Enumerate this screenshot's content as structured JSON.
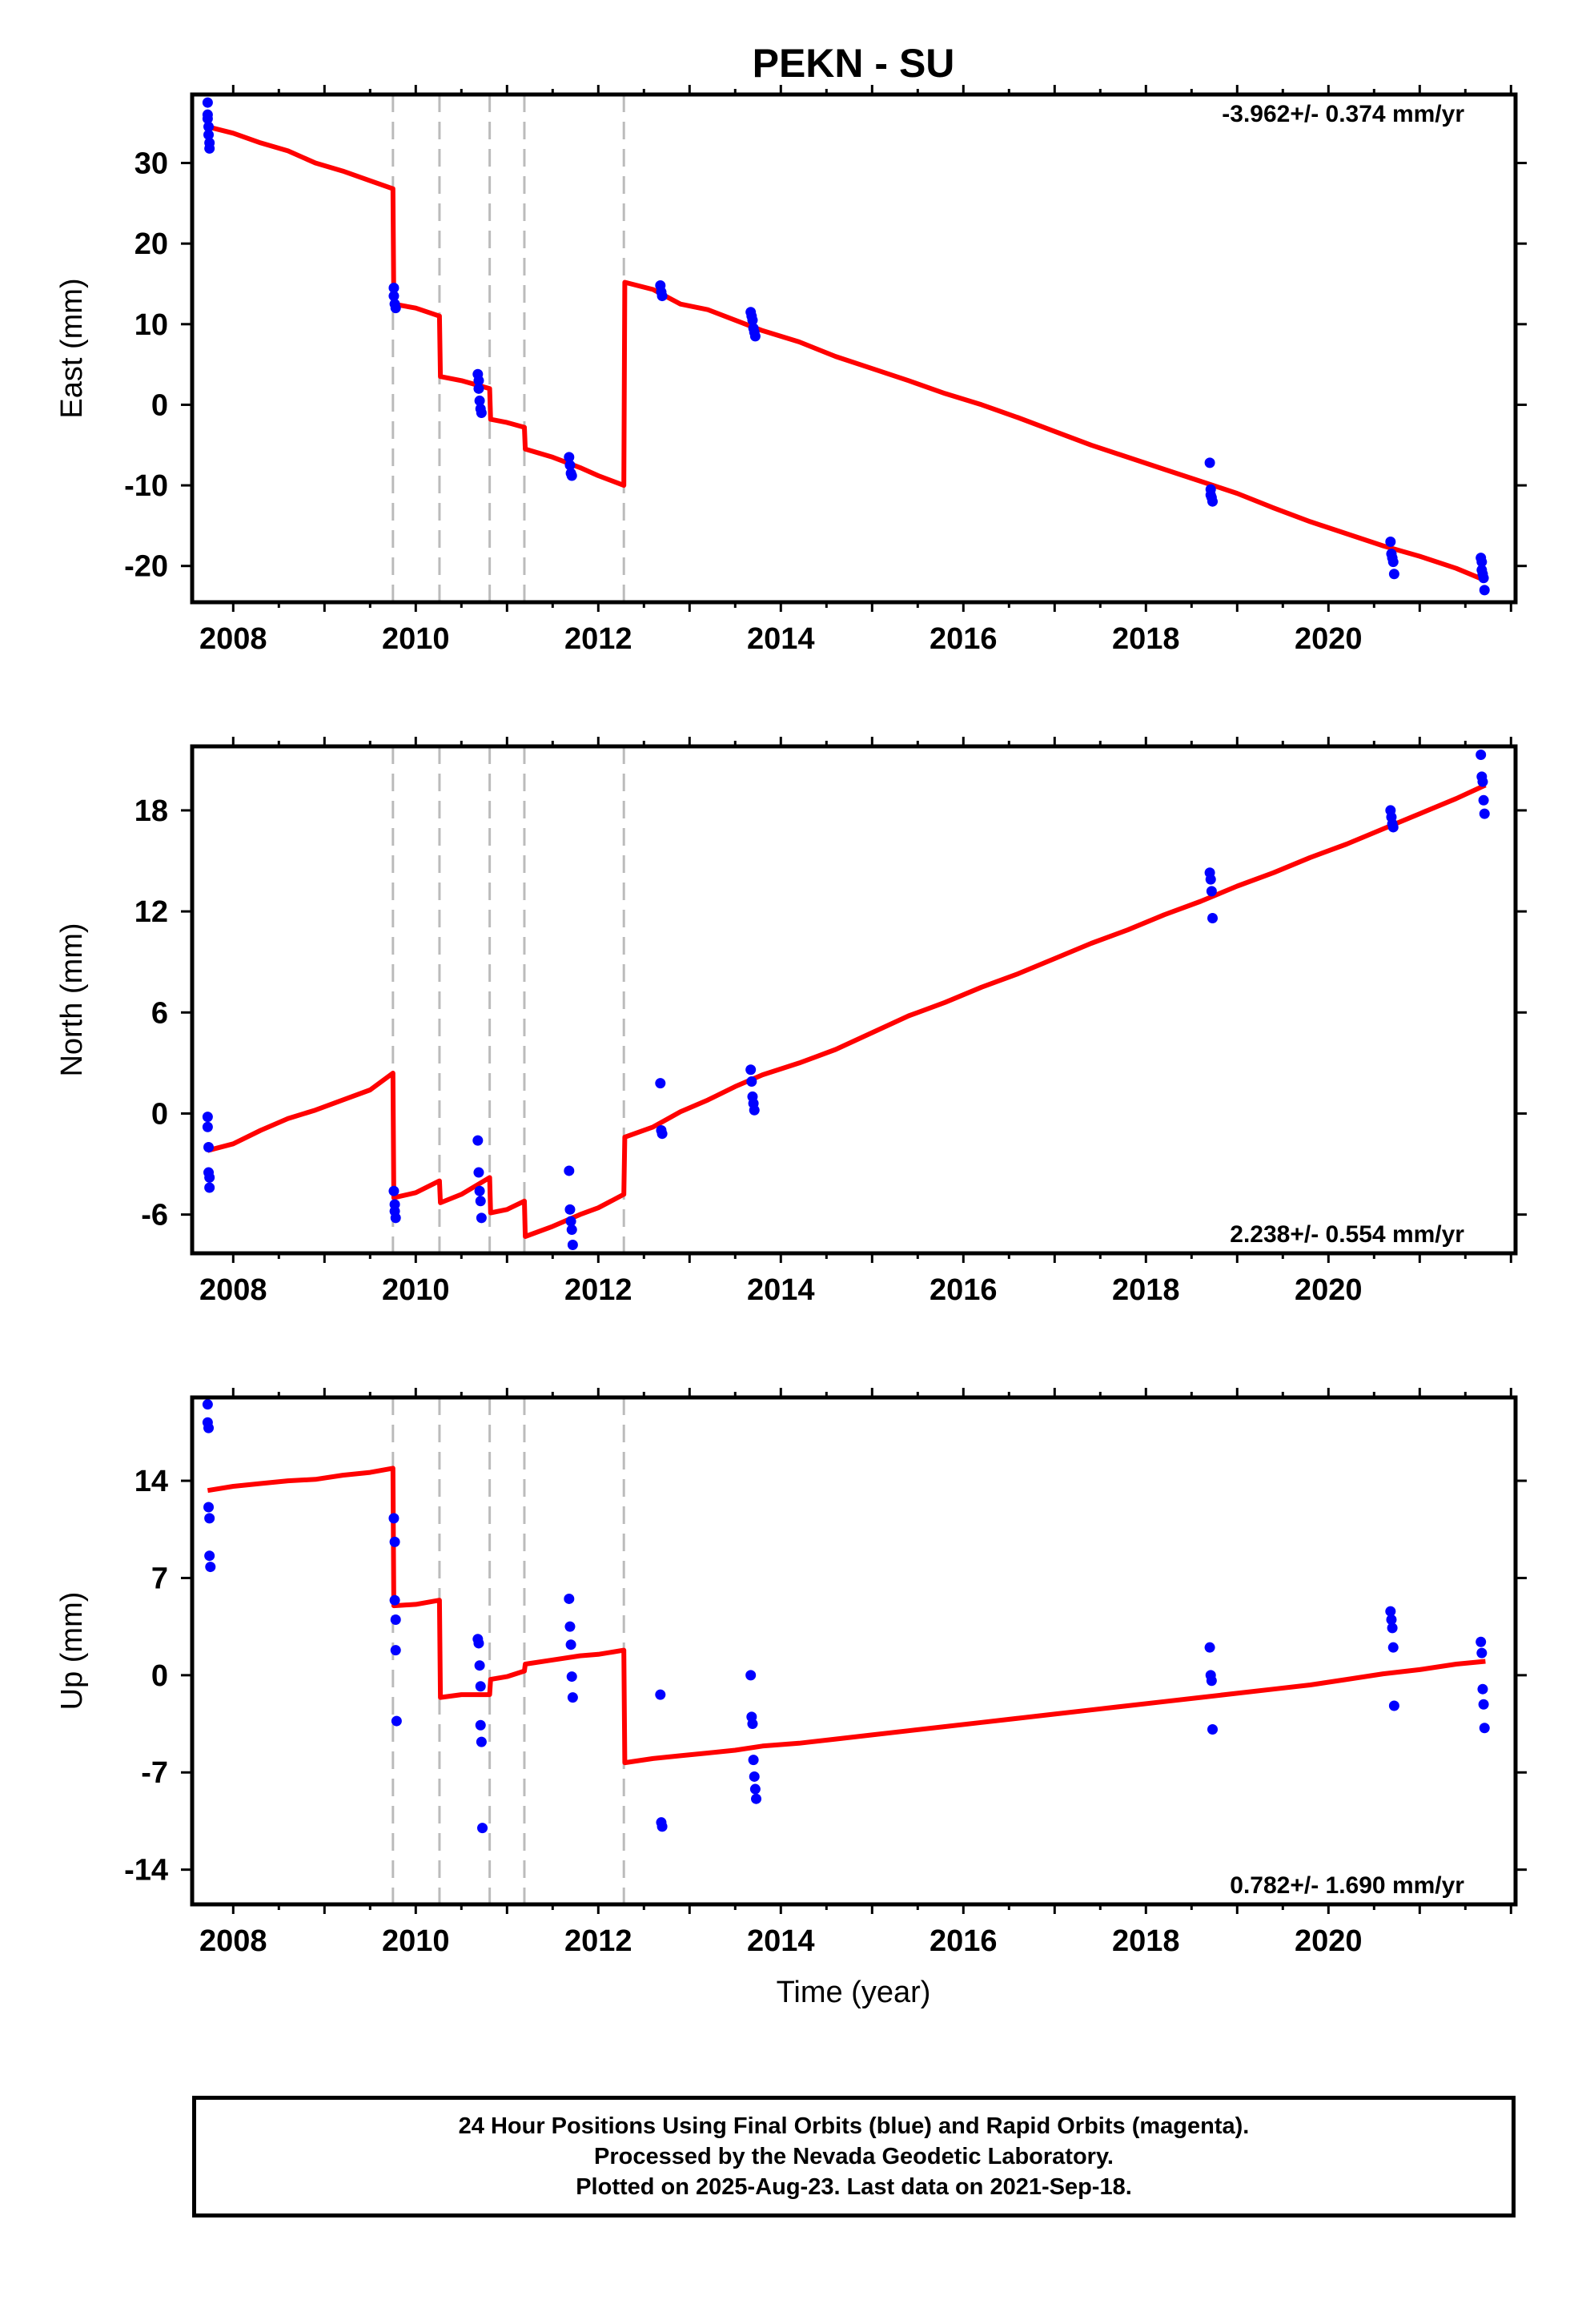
{
  "title": "PEKN - SU",
  "xlabel": "Time (year)",
  "colors": {
    "final_orbits": "#0000ff",
    "model": "#ff0000",
    "event_lines": "#bbbbbb",
    "frame": "#000000"
  },
  "footer": {
    "line1": "24 Hour Positions Using Final Orbits (blue) and Rapid Orbits (magenta).",
    "line2": "Processed by the Nevada Geodetic Laboratory.",
    "line3": "Plotted on 2025-Aug-23. Last data on 2021-Sep-18."
  },
  "chart_data": [
    {
      "type": "scatter",
      "ylabel": "East (mm)",
      "rate_text": "-3.962+/- 0.374 mm/yr",
      "rate_position": "top-right",
      "xlim": [
        2007.55,
        2022.05
      ],
      "ylim": [
        -24.5,
        38.5
      ],
      "xticks": [
        2008,
        2010,
        2012,
        2014,
        2016,
        2018,
        2020
      ],
      "yticks": [
        -20,
        -10,
        0,
        10,
        20,
        30
      ],
      "event_lines": [
        2009.75,
        2010.26,
        2010.81,
        2011.19,
        2012.28
      ],
      "series": [
        {
          "style": "points",
          "x": [
            2007.72,
            2007.72,
            2007.72,
            2007.73,
            2007.73,
            2007.74,
            2007.74,
            2009.76,
            2009.76,
            2009.77,
            2009.78,
            2010.68,
            2010.69,
            2010.69,
            2010.7,
            2010.71,
            2010.72,
            2011.68,
            2011.69,
            2011.7,
            2011.71,
            2012.68,
            2012.69,
            2012.7,
            2013.67,
            2013.68,
            2013.69,
            2013.7,
            2013.71,
            2013.72,
            2018.7,
            2018.71,
            2018.71,
            2018.72,
            2018.73,
            2020.68,
            2020.69,
            2020.7,
            2020.71,
            2020.72,
            2021.67,
            2021.68,
            2021.68,
            2021.69,
            2021.7,
            2021.71
          ],
          "y": [
            37.5,
            36,
            35.5,
            34.5,
            33.5,
            32.5,
            31.8,
            14.5,
            13.5,
            12.5,
            12,
            3.8,
            3,
            2,
            0.5,
            -0.5,
            -1,
            -6.5,
            -7.5,
            -8.5,
            -8.8,
            14.8,
            14,
            13.5,
            11.5,
            11,
            10.5,
            9.5,
            9,
            8.5,
            -7.2,
            -10.5,
            -11.2,
            -11.5,
            -12,
            -17,
            -18.5,
            -19,
            -19.5,
            -21,
            -19,
            -19.5,
            -20.5,
            -21,
            -21.5,
            -23
          ]
        },
        {
          "style": "line",
          "x": [
            2007.72,
            2008.0,
            2008.3,
            2008.6,
            2008.9,
            2009.2,
            2009.5,
            2009.75,
            2009.76,
            2010.0,
            2010.26,
            2010.27,
            2010.5,
            2010.81,
            2010.82,
            2011.0,
            2011.19,
            2011.2,
            2011.5,
            2011.8,
            2012.0,
            2012.28,
            2012.29,
            2012.6,
            2012.9,
            2013.2,
            2013.5,
            2013.8,
            2014.2,
            2014.6,
            2015.0,
            2015.4,
            2015.8,
            2016.2,
            2016.6,
            2017.0,
            2017.4,
            2017.8,
            2018.2,
            2018.6,
            2019.0,
            2019.4,
            2019.8,
            2020.2,
            2020.6,
            2021.0,
            2021.4,
            2021.72
          ],
          "y": [
            34.5,
            33.7,
            32.5,
            31.5,
            30.0,
            29.0,
            27.8,
            26.8,
            12.5,
            12.0,
            11.0,
            3.5,
            3.0,
            2.0,
            -1.8,
            -2.2,
            -2.8,
            -5.5,
            -6.5,
            -7.8,
            -8.8,
            -10.0,
            15.2,
            14.3,
            12.5,
            11.8,
            10.5,
            9.2,
            7.8,
            6.0,
            4.5,
            3.0,
            1.4,
            0.0,
            -1.6,
            -3.3,
            -5.0,
            -6.5,
            -8.0,
            -9.5,
            -11.0,
            -12.8,
            -14.5,
            -16.0,
            -17.5,
            -18.8,
            -20.3,
            -21.8
          ]
        }
      ]
    },
    {
      "type": "scatter",
      "ylabel": "North (mm)",
      "rate_text": "2.238+/- 0.554 mm/yr",
      "rate_position": "bottom-right",
      "xlim": [
        2007.55,
        2022.05
      ],
      "ylim": [
        -8.3,
        21.8
      ],
      "xticks": [
        2008,
        2010,
        2012,
        2014,
        2016,
        2018,
        2020
      ],
      "yticks": [
        -6,
        0,
        6,
        12,
        18
      ],
      "event_lines": [
        2009.75,
        2010.26,
        2010.81,
        2011.19,
        2012.28
      ],
      "series": [
        {
          "style": "points",
          "x": [
            2007.72,
            2007.72,
            2007.73,
            2007.73,
            2007.74,
            2007.74,
            2009.76,
            2009.77,
            2009.77,
            2009.78,
            2010.68,
            2010.69,
            2010.7,
            2010.71,
            2010.72,
            2011.68,
            2011.69,
            2011.7,
            2011.71,
            2011.72,
            2012.68,
            2012.69,
            2012.7,
            2013.67,
            2013.68,
            2013.69,
            2013.7,
            2013.71,
            2018.7,
            2018.71,
            2018.72,
            2018.73,
            2020.68,
            2020.69,
            2020.7,
            2020.71,
            2021.67,
            2021.68,
            2021.69,
            2021.7,
            2021.71
          ],
          "y": [
            -0.2,
            -0.8,
            -2.0,
            -3.5,
            -3.8,
            -4.4,
            -4.6,
            -5.4,
            -5.8,
            -6.2,
            -1.6,
            -3.5,
            -4.6,
            -5.2,
            -6.2,
            -3.4,
            -5.7,
            -6.4,
            -6.9,
            -7.8,
            1.8,
            -1.0,
            -1.2,
            2.6,
            1.9,
            1.0,
            0.6,
            0.2,
            14.3,
            13.9,
            13.2,
            11.6,
            18.0,
            17.6,
            17.2,
            17.0,
            21.3,
            20.0,
            19.7,
            18.6,
            17.8
          ]
        },
        {
          "style": "line",
          "x": [
            2007.72,
            2008.0,
            2008.3,
            2008.6,
            2008.9,
            2009.2,
            2009.5,
            2009.75,
            2009.76,
            2010.0,
            2010.26,
            2010.27,
            2010.5,
            2010.81,
            2010.82,
            2011.0,
            2011.19,
            2011.2,
            2011.5,
            2011.8,
            2012.0,
            2012.28,
            2012.29,
            2012.6,
            2012.9,
            2013.2,
            2013.5,
            2013.8,
            2014.2,
            2014.6,
            2015.0,
            2015.4,
            2015.8,
            2016.2,
            2016.6,
            2017.0,
            2017.4,
            2017.8,
            2018.2,
            2018.6,
            2019.0,
            2019.4,
            2019.8,
            2020.2,
            2020.6,
            2021.0,
            2021.4,
            2021.72
          ],
          "y": [
            -2.2,
            -1.8,
            -1.0,
            -0.3,
            0.2,
            0.8,
            1.4,
            2.4,
            -5.0,
            -4.7,
            -4.0,
            -5.3,
            -4.8,
            -3.8,
            -5.9,
            -5.7,
            -5.2,
            -7.3,
            -6.7,
            -6.0,
            -5.6,
            -4.8,
            -1.4,
            -0.8,
            0.1,
            0.8,
            1.6,
            2.3,
            3.0,
            3.8,
            4.8,
            5.8,
            6.6,
            7.5,
            8.3,
            9.2,
            10.1,
            10.9,
            11.8,
            12.6,
            13.5,
            14.3,
            15.2,
            16.0,
            16.9,
            17.8,
            18.7,
            19.5
          ]
        }
      ]
    },
    {
      "type": "scatter",
      "ylabel": "Up (mm)",
      "rate_text": "0.782+/- 1.690 mm/yr",
      "rate_position": "bottom-right",
      "xlim": [
        2007.55,
        2022.05
      ],
      "ylim": [
        -16.5,
        20.0
      ],
      "xticks": [
        2008,
        2010,
        2012,
        2014,
        2016,
        2018,
        2020
      ],
      "yticks": [
        -14,
        -7,
        0,
        7,
        14
      ],
      "event_lines": [
        2009.75,
        2010.26,
        2010.81,
        2011.19,
        2012.28
      ],
      "series": [
        {
          "style": "points",
          "x": [
            2007.72,
            2007.72,
            2007.73,
            2007.73,
            2007.74,
            2007.74,
            2007.75,
            2009.76,
            2009.77,
            2009.77,
            2009.78,
            2009.78,
            2009.79,
            2010.68,
            2010.69,
            2010.7,
            2010.71,
            2010.71,
            2010.72,
            2010.73,
            2011.68,
            2011.69,
            2011.7,
            2011.71,
            2011.72,
            2012.68,
            2012.69,
            2012.7,
            2013.67,
            2013.68,
            2013.69,
            2013.7,
            2013.71,
            2013.72,
            2013.73,
            2018.7,
            2018.71,
            2018.72,
            2018.73,
            2020.68,
            2020.69,
            2020.7,
            2020.71,
            2020.72,
            2021.67,
            2021.68,
            2021.69,
            2021.7,
            2021.71
          ],
          "y": [
            19.5,
            18.2,
            17.8,
            12.1,
            11.3,
            8.6,
            7.8,
            11.3,
            9.6,
            5.4,
            4.0,
            1.8,
            -3.3,
            2.6,
            2.3,
            0.7,
            -0.8,
            -3.6,
            -4.8,
            -11.0,
            5.5,
            3.5,
            2.2,
            -0.1,
            -1.6,
            -1.4,
            -10.6,
            -10.9,
            0.0,
            -3.0,
            -3.5,
            -6.1,
            -7.3,
            -8.2,
            -8.9,
            2.0,
            0.0,
            -0.4,
            -3.9,
            4.6,
            4.0,
            3.4,
            2.0,
            -2.2,
            2.4,
            1.6,
            -1.0,
            -2.1,
            -3.8
          ]
        },
        {
          "style": "line",
          "x": [
            2007.72,
            2008.0,
            2008.3,
            2008.6,
            2008.9,
            2009.2,
            2009.5,
            2009.75,
            2009.76,
            2010.0,
            2010.26,
            2010.27,
            2010.5,
            2010.81,
            2010.82,
            2011.0,
            2011.19,
            2011.2,
            2011.5,
            2011.8,
            2012.0,
            2012.28,
            2012.29,
            2012.6,
            2012.9,
            2013.2,
            2013.5,
            2013.8,
            2014.2,
            2014.6,
            2015.0,
            2015.4,
            2015.8,
            2016.2,
            2016.6,
            2017.0,
            2017.4,
            2017.8,
            2018.2,
            2018.6,
            2019.0,
            2019.4,
            2019.8,
            2020.2,
            2020.6,
            2021.0,
            2021.4,
            2021.72
          ],
          "y": [
            13.3,
            13.6,
            13.8,
            14.0,
            14.1,
            14.4,
            14.6,
            14.9,
            5.0,
            5.1,
            5.4,
            -1.6,
            -1.4,
            -1.4,
            -0.3,
            -0.1,
            0.3,
            0.8,
            1.1,
            1.4,
            1.5,
            1.8,
            -6.3,
            -6.0,
            -5.8,
            -5.6,
            -5.4,
            -5.1,
            -4.9,
            -4.6,
            -4.3,
            -4.0,
            -3.7,
            -3.4,
            -3.1,
            -2.8,
            -2.5,
            -2.2,
            -1.9,
            -1.6,
            -1.3,
            -1.0,
            -0.7,
            -0.3,
            0.1,
            0.4,
            0.8,
            1.0
          ]
        }
      ]
    }
  ]
}
